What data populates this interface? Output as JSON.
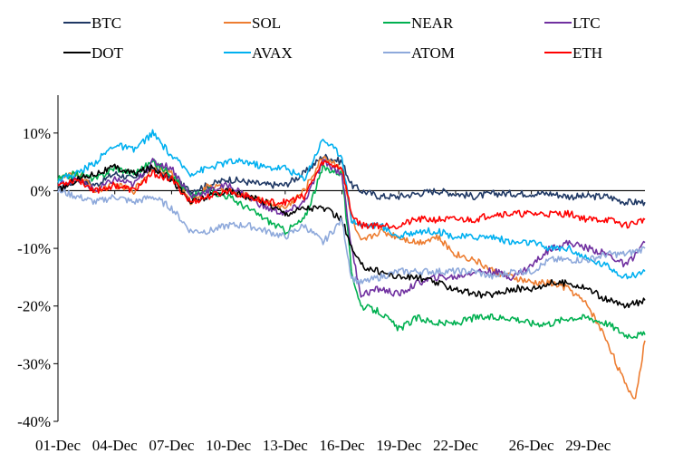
{
  "chart_data": {
    "type": "line",
    "title": "",
    "xlabel": "",
    "ylabel": "",
    "ylim": [
      -0.4,
      0.15
    ],
    "ytick_values": [
      -0.4,
      -0.3,
      -0.2,
      -0.1,
      0.0,
      0.1
    ],
    "ytick_labels": [
      "-40%",
      "-30%",
      "-20%",
      "-10%",
      "0%",
      "10%"
    ],
    "xlim": [
      0,
      31
    ],
    "xtick_positions": [
      0,
      3,
      6,
      9,
      12,
      15,
      18,
      21,
      25,
      28
    ],
    "xtick_labels": [
      "01-Dec",
      "04-Dec",
      "07-Dec",
      "10-Dec",
      "13-Dec",
      "16-Dec",
      "19-Dec",
      "22-Dec",
      "26-Dec",
      "29-Dec"
    ],
    "grid": false,
    "zero_line": true,
    "legend_position": "top",
    "series": [
      {
        "name": "BTC",
        "color": "#1F3864",
        "x": [
          0,
          1,
          2,
          3,
          4,
          5,
          6,
          7,
          8,
          9,
          10,
          11,
          12,
          13,
          14,
          15,
          15.5,
          16,
          17,
          18,
          19,
          20,
          21,
          22,
          23,
          24,
          25,
          26,
          27,
          28,
          29,
          30,
          31
        ],
        "values": [
          0.0,
          0.02,
          0.01,
          0.03,
          0.02,
          0.04,
          0.02,
          0.0,
          0.01,
          0.02,
          0.015,
          0.01,
          0.01,
          0.03,
          0.06,
          0.05,
          0.01,
          0.0,
          -0.01,
          -0.01,
          -0.005,
          0.0,
          -0.005,
          -0.01,
          -0.005,
          -0.005,
          -0.005,
          -0.005,
          -0.01,
          -0.01,
          -0.01,
          -0.02,
          -0.02
        ]
      },
      {
        "name": "SOL",
        "color": "#ED7D31",
        "x": [
          0,
          1,
          2,
          3,
          4,
          5,
          6,
          7,
          8,
          9,
          10,
          11,
          12,
          13,
          14,
          15,
          15.5,
          16,
          17,
          18,
          19,
          20,
          21,
          22,
          23,
          24,
          25,
          26,
          27,
          28,
          29,
          30,
          30.5,
          31
        ],
        "values": [
          0.02,
          0.03,
          0.0,
          0.01,
          0.0,
          0.04,
          0.03,
          -0.02,
          0.01,
          0.0,
          -0.01,
          -0.02,
          -0.03,
          0.0,
          0.06,
          0.04,
          -0.05,
          -0.09,
          -0.07,
          -0.08,
          -0.09,
          -0.08,
          -0.11,
          -0.12,
          -0.14,
          -0.15,
          -0.16,
          -0.16,
          -0.17,
          -0.2,
          -0.26,
          -0.34,
          -0.36,
          -0.26
        ]
      },
      {
        "name": "NEAR",
        "color": "#00B050",
        "x": [
          0,
          1,
          2,
          3,
          4,
          5,
          6,
          7,
          8,
          9,
          10,
          11,
          12,
          13,
          14,
          15,
          15.5,
          16,
          17,
          18,
          19,
          20,
          21,
          22,
          23,
          24,
          25,
          26,
          27,
          28,
          29,
          30,
          31
        ],
        "values": [
          0.02,
          0.03,
          0.02,
          0.04,
          0.03,
          0.05,
          0.03,
          -0.01,
          0.0,
          -0.01,
          -0.03,
          -0.05,
          -0.07,
          -0.05,
          0.04,
          0.03,
          -0.14,
          -0.2,
          -0.21,
          -0.24,
          -0.22,
          -0.23,
          -0.23,
          -0.22,
          -0.22,
          -0.22,
          -0.23,
          -0.23,
          -0.22,
          -0.22,
          -0.23,
          -0.25,
          -0.25
        ]
      },
      {
        "name": "LTC",
        "color": "#7030A0",
        "x": [
          0,
          1,
          2,
          3,
          4,
          5,
          6,
          7,
          8,
          9,
          10,
          11,
          12,
          13,
          14,
          15,
          15.5,
          16,
          17,
          18,
          19,
          20,
          21,
          22,
          23,
          24,
          25,
          26,
          27,
          28,
          29,
          30,
          31
        ],
        "values": [
          0.01,
          0.02,
          0.0,
          0.02,
          0.01,
          0.05,
          0.04,
          -0.01,
          0.0,
          0.01,
          -0.01,
          -0.03,
          -0.04,
          -0.02,
          0.05,
          0.03,
          -0.1,
          -0.18,
          -0.17,
          -0.18,
          -0.16,
          -0.15,
          -0.15,
          -0.14,
          -0.14,
          -0.15,
          -0.13,
          -0.1,
          -0.09,
          -0.1,
          -0.11,
          -0.13,
          -0.09
        ]
      },
      {
        "name": "DOT",
        "color": "#000000",
        "x": [
          0,
          1,
          2,
          3,
          4,
          5,
          6,
          7,
          8,
          9,
          10,
          11,
          12,
          13,
          14,
          15,
          15.5,
          16,
          17,
          18,
          19,
          20,
          21,
          22,
          23,
          24,
          25,
          26,
          27,
          28,
          29,
          30,
          31
        ],
        "values": [
          0.0,
          0.02,
          0.03,
          0.04,
          0.03,
          0.04,
          0.02,
          -0.02,
          -0.01,
          0.0,
          -0.01,
          -0.02,
          -0.04,
          -0.03,
          -0.03,
          -0.05,
          -0.1,
          -0.13,
          -0.14,
          -0.15,
          -0.15,
          -0.16,
          -0.17,
          -0.18,
          -0.18,
          -0.17,
          -0.17,
          -0.16,
          -0.16,
          -0.17,
          -0.19,
          -0.2,
          -0.19
        ]
      },
      {
        "name": "AVAX",
        "color": "#00B0F0",
        "x": [
          0,
          1,
          2,
          3,
          4,
          5,
          6,
          7,
          8,
          9,
          10,
          11,
          12,
          13,
          14,
          15,
          15.5,
          16,
          17,
          18,
          19,
          20,
          21,
          22,
          23,
          24,
          25,
          26,
          27,
          28,
          29,
          30,
          31
        ],
        "values": [
          0.02,
          0.03,
          0.05,
          0.08,
          0.07,
          0.1,
          0.06,
          0.03,
          0.04,
          0.05,
          0.05,
          0.04,
          0.04,
          0.02,
          0.09,
          0.06,
          -0.05,
          -0.06,
          -0.06,
          -0.08,
          -0.07,
          -0.07,
          -0.08,
          -0.08,
          -0.08,
          -0.09,
          -0.09,
          -0.1,
          -0.1,
          -0.12,
          -0.13,
          -0.15,
          -0.14
        ]
      },
      {
        "name": "ATOM",
        "color": "#8EA9DB",
        "x": [
          0,
          1,
          2,
          3,
          4,
          5,
          6,
          7,
          8,
          9,
          10,
          11,
          12,
          13,
          14,
          15,
          15.5,
          16,
          17,
          18,
          19,
          20,
          21,
          22,
          23,
          24,
          25,
          26,
          27,
          28,
          29,
          30,
          31
        ],
        "values": [
          0.0,
          -0.01,
          -0.02,
          -0.01,
          -0.02,
          -0.01,
          -0.03,
          -0.07,
          -0.07,
          -0.06,
          -0.06,
          -0.07,
          -0.08,
          -0.06,
          -0.09,
          -0.05,
          -0.15,
          -0.16,
          -0.15,
          -0.14,
          -0.14,
          -0.14,
          -0.14,
          -0.14,
          -0.15,
          -0.14,
          -0.14,
          -0.12,
          -0.12,
          -0.12,
          -0.11,
          -0.11,
          -0.1
        ]
      },
      {
        "name": "ETH",
        "color": "#FF0000",
        "x": [
          0,
          1,
          2,
          3,
          4,
          5,
          6,
          7,
          8,
          9,
          10,
          11,
          12,
          13,
          14,
          15,
          15.5,
          16,
          17,
          18,
          19,
          20,
          21,
          22,
          23,
          24,
          25,
          26,
          27,
          28,
          29,
          30,
          31
        ],
        "values": [
          0.01,
          0.02,
          0.0,
          0.01,
          0.0,
          0.03,
          0.02,
          -0.02,
          -0.01,
          0.0,
          -0.01,
          -0.02,
          -0.02,
          -0.01,
          0.05,
          0.04,
          -0.04,
          -0.06,
          -0.06,
          -0.06,
          -0.05,
          -0.05,
          -0.05,
          -0.05,
          -0.04,
          -0.04,
          -0.04,
          -0.04,
          -0.04,
          -0.05,
          -0.05,
          -0.06,
          -0.05
        ]
      }
    ]
  }
}
